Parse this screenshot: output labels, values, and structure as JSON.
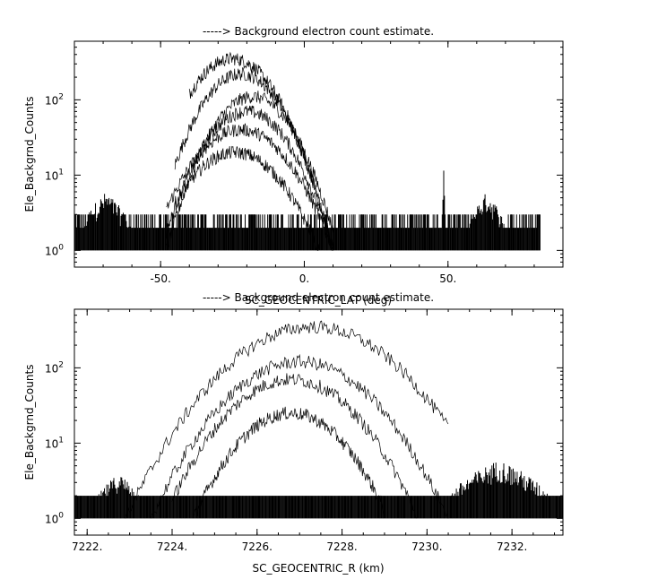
{
  "chart_data": [
    {
      "type": "line",
      "title": "-----> Background electron count estimate.",
      "xlabel": "SC_GEOCENTRIC_LAT (deg)",
      "ylabel": "Ele_Backgrnd_Counts",
      "xlim": [
        -80,
        90
      ],
      "ylim": [
        0.6,
        600
      ],
      "yscale": "log",
      "xticks": [
        -50,
        0,
        50
      ],
      "xtick_labels": [
        "-50.",
        "0.",
        "50."
      ],
      "xminor_step": 10,
      "yticks": [
        1,
        10,
        100
      ],
      "ytick_labels": [
        "10^0",
        "10^1",
        "10^2"
      ],
      "noise_range": [
        -80,
        82
      ],
      "noise_level": [
        1,
        3
      ],
      "noise_bumps": [
        {
          "x": [
            -80,
            -58
          ],
          "peak": 6
        },
        {
          "x": [
            48,
            49
          ],
          "peak": 14
        },
        {
          "x": [
            55,
            72
          ],
          "peak": 6
        }
      ],
      "series": [
        {
          "center": -25,
          "peak": 350,
          "x": [
            -40,
            -15,
            0,
            10
          ]
        },
        {
          "center": -22,
          "peak": 220,
          "x": [
            -45,
            -20,
            0,
            10
          ]
        },
        {
          "center": -18,
          "peak": 110,
          "x": [
            -48,
            -20,
            0,
            10
          ]
        },
        {
          "center": -20,
          "peak": 70,
          "x": [
            -48,
            -20,
            0,
            10
          ]
        },
        {
          "center": -22,
          "peak": 40,
          "x": [
            -48,
            -20,
            0,
            10
          ]
        },
        {
          "center": -24,
          "peak": 20,
          "x": [
            -45,
            -24,
            -5,
            5
          ]
        }
      ]
    },
    {
      "type": "line",
      "title": "-----> Background electron count estimate.",
      "xlabel": "SC_GEOCENTRIC_R (km)",
      "ylabel": "Ele_Backgrnd_Counts",
      "xlim": [
        7221.7,
        7233.2
      ],
      "ylim": [
        0.6,
        600
      ],
      "yscale": "log",
      "xticks": [
        7222,
        7224,
        7226,
        7228,
        7230,
        7232
      ],
      "xtick_labels": [
        "7222.",
        "7224.",
        "7226.",
        "7228.",
        "7230.",
        "7232."
      ],
      "xminor_step": 0.5,
      "yticks": [
        1,
        10,
        100
      ],
      "ytick_labels": [
        "10^0",
        "10^1",
        "10^2"
      ],
      "noise_range": [
        7221.7,
        7233.2
      ],
      "noise_level": [
        1,
        2
      ],
      "noise_bumps": [
        {
          "x": [
            7222.0,
            7223.5
          ],
          "peak": 4
        },
        {
          "x": [
            7230.2,
            7233.2
          ],
          "peak": 6
        }
      ],
      "series": [
        {
          "center": 7227.3,
          "peak": 350,
          "x": [
            7222.9,
            7227.3,
            7230.5
          ]
        },
        {
          "center": 7227.0,
          "peak": 120,
          "x": [
            7223.5,
            7227.0,
            7230.5
          ]
        },
        {
          "center": 7226.8,
          "peak": 70,
          "x": [
            7224.0,
            7226.8,
            7229.8
          ]
        },
        {
          "center": 7226.8,
          "peak": 25,
          "x": [
            7224.5,
            7226.8,
            7229.0
          ]
        }
      ]
    }
  ]
}
